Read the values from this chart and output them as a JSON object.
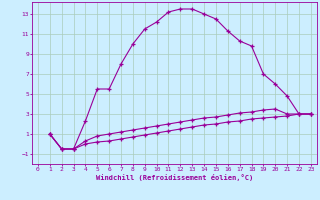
{
  "xlabel": "Windchill (Refroidissement éolien,°C)",
  "background_color": "#cceeff",
  "grid_color": "#aaccbb",
  "line_color": "#990099",
  "xlim": [
    -0.5,
    23.5
  ],
  "ylim": [
    -2,
    14.2
  ],
  "xticks": [
    0,
    1,
    2,
    3,
    4,
    5,
    6,
    7,
    8,
    9,
    10,
    11,
    12,
    13,
    14,
    15,
    16,
    17,
    18,
    19,
    20,
    21,
    22,
    23
  ],
  "yticks": [
    -1,
    1,
    3,
    5,
    7,
    9,
    11,
    13
  ],
  "curve1_x": [
    1,
    2,
    3,
    4,
    5,
    6,
    7,
    8,
    9,
    10,
    11,
    12,
    13,
    14,
    15,
    16,
    17,
    18,
    19,
    20,
    21,
    22,
    23
  ],
  "curve1_y": [
    1,
    -0.5,
    -0.5,
    2.3,
    5.5,
    5.5,
    8.0,
    10.0,
    11.5,
    12.2,
    13.2,
    13.5,
    13.5,
    13.0,
    12.5,
    11.3,
    10.3,
    9.8,
    7.0,
    6.0,
    4.8,
    3.0,
    3.0
  ],
  "curve2_x": [
    1,
    2,
    3,
    4,
    5,
    6,
    7,
    8,
    9,
    10,
    11,
    12,
    13,
    14,
    15,
    16,
    17,
    18,
    19,
    20,
    21,
    22,
    23
  ],
  "curve2_y": [
    1,
    -0.5,
    -0.5,
    0.3,
    0.8,
    1.0,
    1.2,
    1.4,
    1.6,
    1.8,
    2.0,
    2.2,
    2.4,
    2.6,
    2.7,
    2.9,
    3.1,
    3.2,
    3.4,
    3.5,
    3.0,
    3.0,
    3.0
  ],
  "curve3_x": [
    1,
    2,
    3,
    4,
    5,
    6,
    7,
    8,
    9,
    10,
    11,
    12,
    13,
    14,
    15,
    16,
    17,
    18,
    19,
    20,
    21,
    22,
    23
  ],
  "curve3_y": [
    1,
    -0.5,
    -0.5,
    0.0,
    0.2,
    0.3,
    0.5,
    0.7,
    0.9,
    1.1,
    1.3,
    1.5,
    1.7,
    1.9,
    2.0,
    2.2,
    2.3,
    2.5,
    2.6,
    2.7,
    2.8,
    3.0,
    3.0
  ]
}
